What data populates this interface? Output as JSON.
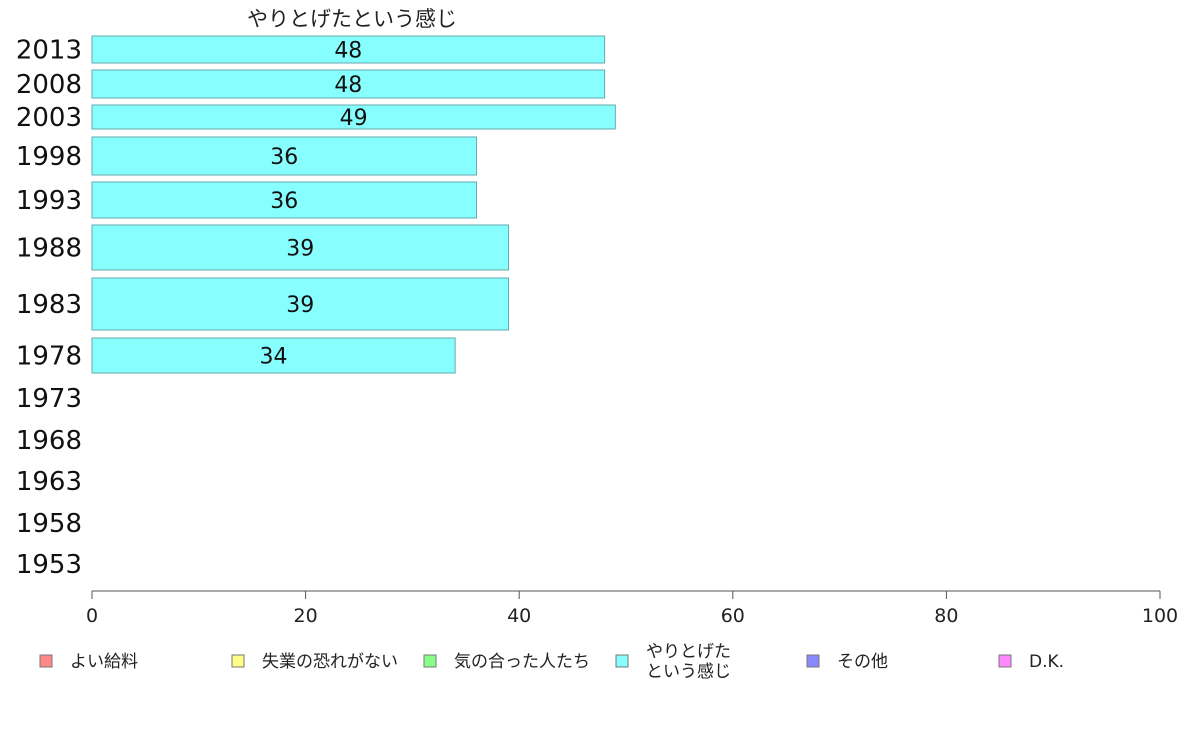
{
  "chart_data": {
    "type": "bar",
    "orientation": "horizontal",
    "title": "やりとげたという感じ",
    "categories": [
      "2013",
      "2008",
      "2003",
      "1998",
      "1993",
      "1988",
      "1983",
      "1978",
      "1973",
      "1968",
      "1963",
      "1958",
      "1953"
    ],
    "values": [
      48,
      48,
      49,
      36,
      36,
      39,
      39,
      34,
      null,
      null,
      null,
      null,
      null
    ],
    "data_labels": [
      "48",
      "48",
      "49",
      "36",
      "36",
      "39",
      "39",
      "34",
      "",
      "",
      "",
      "",
      ""
    ],
    "xlim": [
      0,
      100
    ],
    "xticks": [
      "0",
      "20",
      "40",
      "60",
      "80",
      "100"
    ],
    "bar_color": "#88ffff",
    "bar_stroke": "#66aaaa",
    "grid": false,
    "legend_placement": "bottom",
    "legend": [
      {
        "label_lines": [
          "よい給料"
        ],
        "color": "#ff8888"
      },
      {
        "label_lines": [
          "失業の恐れがない"
        ],
        "color": "#ffff88"
      },
      {
        "label_lines": [
          "気の合った人たち"
        ],
        "color": "#88ff88"
      },
      {
        "label_lines": [
          "やりとげた",
          "という感じ"
        ],
        "color": "#88ffff"
      },
      {
        "label_lines": [
          "その他"
        ],
        "color": "#8888ff"
      },
      {
        "label_lines": [
          "D.K."
        ],
        "color": "#ff88ff"
      }
    ]
  }
}
